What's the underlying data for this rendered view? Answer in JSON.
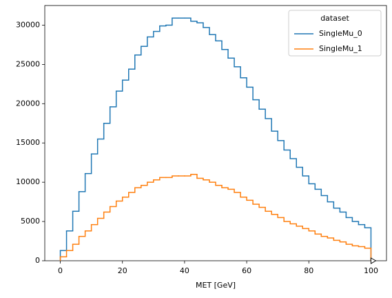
{
  "chart_data": {
    "type": "histogram",
    "xlabel": "MET [GeV]",
    "legend_title": "dataset",
    "legend_loc": "upper right",
    "bins": [
      0,
      2,
      4,
      6,
      8,
      10,
      12,
      14,
      16,
      18,
      20,
      22,
      24,
      26,
      28,
      30,
      32,
      34,
      36,
      38,
      40,
      42,
      44,
      46,
      48,
      50,
      52,
      54,
      56,
      58,
      60,
      62,
      64,
      66,
      68,
      70,
      72,
      74,
      76,
      78,
      80,
      82,
      84,
      86,
      88,
      90,
      92,
      94,
      96,
      98,
      100
    ],
    "series": [
      {
        "name": "SingleMu_0",
        "color": "#1f77b4",
        "values": [
          1300,
          3800,
          6300,
          8800,
          11100,
          13600,
          15500,
          17500,
          19600,
          21600,
          23000,
          24400,
          26200,
          27300,
          28500,
          29200,
          29900,
          30000,
          30900,
          30900,
          30900,
          30500,
          30300,
          29700,
          28800,
          28000,
          26900,
          25800,
          24700,
          23300,
          22100,
          20500,
          19300,
          18100,
          16500,
          15300,
          14100,
          13000,
          11900,
          10800,
          9800,
          9100,
          8300,
          7500,
          6700,
          6200,
          5500,
          5000,
          4600,
          4200
        ]
      },
      {
        "name": "SingleMu_1",
        "color": "#ff7f0e",
        "values": [
          500,
          1300,
          2100,
          3100,
          3800,
          4600,
          5400,
          6200,
          6900,
          7600,
          8100,
          8700,
          9300,
          9600,
          10000,
          10300,
          10600,
          10600,
          10800,
          10800,
          10800,
          11000,
          10500,
          10300,
          10000,
          9600,
          9300,
          9100,
          8700,
          8100,
          7700,
          7200,
          6800,
          6300,
          5900,
          5500,
          5000,
          4700,
          4400,
          4100,
          3800,
          3400,
          3100,
          2900,
          2600,
          2400,
          2100,
          1900,
          1800,
          1600
        ]
      }
    ],
    "xlim": [
      -5,
      105
    ],
    "ylim": [
      0,
      32500
    ],
    "xticks": [
      0,
      20,
      40,
      60,
      80,
      100
    ],
    "yticks": [
      0,
      5000,
      10000,
      15000,
      20000,
      25000,
      30000
    ]
  }
}
